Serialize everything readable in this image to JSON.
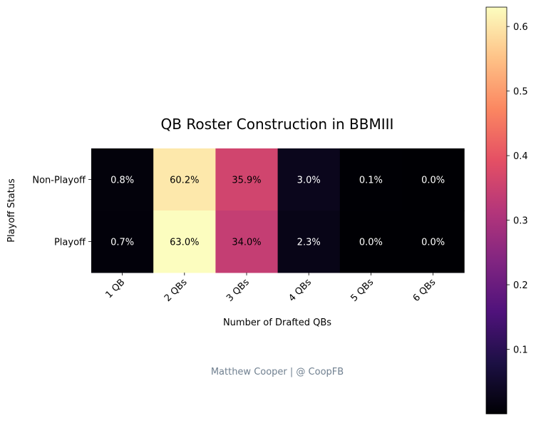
{
  "chart_data": {
    "type": "heatmap",
    "title": "QB Roster Construction in BBMIII",
    "xlabel": "Number of Drafted QBs",
    "ylabel": "Playoff Status",
    "x_categories": [
      "1 QB",
      "2 QBs",
      "3 QBs",
      "4 QBs",
      "5 QBs",
      "6 QBs"
    ],
    "y_categories": [
      "Non-Playoff",
      "Playoff"
    ],
    "values": [
      [
        0.008,
        0.602,
        0.359,
        0.03,
        0.001,
        0.0
      ],
      [
        0.007,
        0.63,
        0.34,
        0.023,
        0.0,
        0.0
      ]
    ],
    "cell_labels": [
      [
        "0.8%",
        "60.2%",
        "35.9%",
        "3.0%",
        "0.1%",
        "0.0%"
      ],
      [
        "0.7%",
        "63.0%",
        "34.0%",
        "2.3%",
        "0.0%",
        "0.0%"
      ]
    ],
    "colormap": "magma",
    "colorbar": {
      "range": [
        0.0,
        0.63
      ],
      "ticks": [
        0.1,
        0.2,
        0.3,
        0.4,
        0.5,
        0.6
      ],
      "tick_labels": [
        "0.1",
        "0.2",
        "0.3",
        "0.4",
        "0.5",
        "0.6"
      ]
    }
  },
  "footer": {
    "credit": "Matthew Cooper | @ CoopFB"
  },
  "colors": {
    "credit_text": "#708090",
    "light_text": "#ffffff",
    "dark_text": "#000000"
  }
}
